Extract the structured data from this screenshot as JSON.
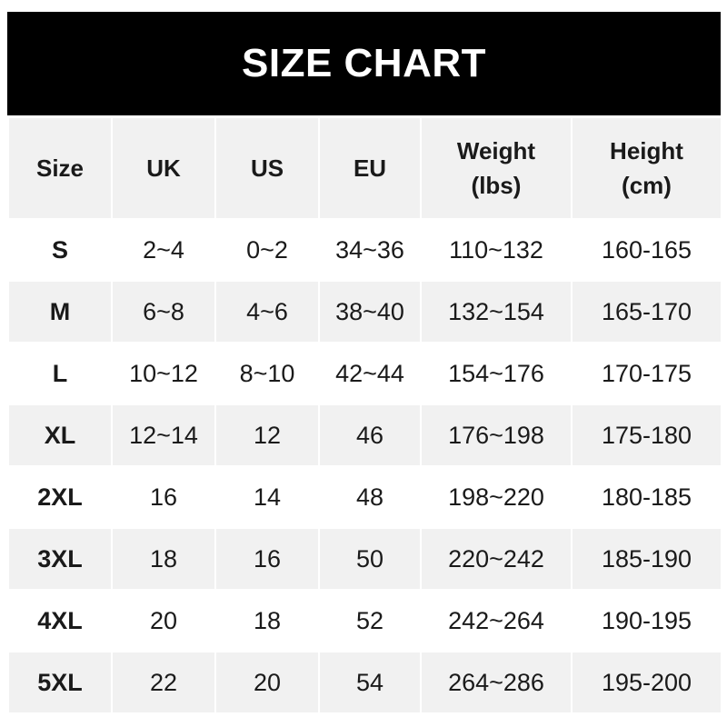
{
  "title": "SIZE CHART",
  "headers": [
    {
      "line1": "Size",
      "line2": ""
    },
    {
      "line1": "UK",
      "line2": ""
    },
    {
      "line1": "US",
      "line2": ""
    },
    {
      "line1": "EU",
      "line2": ""
    },
    {
      "line1": "Weight",
      "line2": "(lbs)"
    },
    {
      "line1": "Height",
      "line2": "(cm)"
    }
  ],
  "rows": [
    [
      "S",
      "2~4",
      "0~2",
      "34~36",
      "110~132",
      "160-165"
    ],
    [
      "M",
      "6~8",
      "4~6",
      "38~40",
      "132~154",
      "165-170"
    ],
    [
      "L",
      "10~12",
      "8~10",
      "42~44",
      "154~176",
      "170-175"
    ],
    [
      "XL",
      "12~14",
      "12",
      "46",
      "176~198",
      "175-180"
    ],
    [
      "2XL",
      "16",
      "14",
      "48",
      "198~220",
      "180-185"
    ],
    [
      "3XL",
      "18",
      "16",
      "50",
      "220~242",
      "185-190"
    ],
    [
      "4XL",
      "20",
      "18",
      "52",
      "242~264",
      "190-195"
    ],
    [
      "5XL",
      "22",
      "20",
      "54",
      "264~286",
      "195-200"
    ]
  ]
}
